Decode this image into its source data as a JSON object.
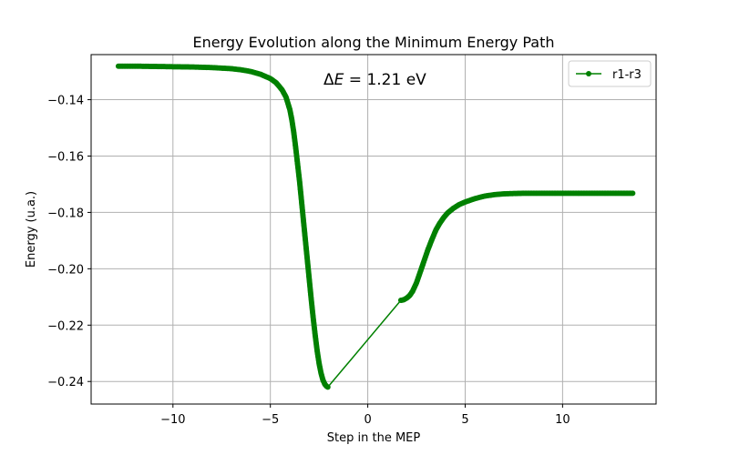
{
  "chart_data": {
    "type": "line",
    "title": "Energy Evolution along the Minimum Energy Path",
    "xlabel": "Step in the MEP",
    "ylabel": "Energy (u.a.)",
    "xlim": [
      -14.2,
      14.8
    ],
    "ylim": [
      -0.248,
      -0.124
    ],
    "xticks": [
      -10,
      -5,
      0,
      5,
      10
    ],
    "xtick_labels": [
      "−10",
      "−5",
      "0",
      "5",
      "10"
    ],
    "yticks": [
      -0.14,
      -0.16,
      -0.18,
      -0.2,
      -0.22,
      -0.24
    ],
    "ytick_labels": [
      "−0.14",
      "−0.16",
      "−0.18",
      "−0.20",
      "−0.22",
      "−0.24"
    ],
    "grid": true,
    "legend": {
      "placement": "top-right"
    },
    "annotation": {
      "prefix": "Δ",
      "symbol": "E",
      "suffix": " = 1.21 eV"
    },
    "series": [
      {
        "name": "r1-r3",
        "color": "#008000",
        "marker": "circle",
        "segments": [
          {
            "x": [
              -12.8,
              -12.0,
              -11.0,
              -10.0,
              -9.0,
              -8.0,
              -7.0,
              -6.5,
              -6.0,
              -5.5,
              -5.0,
              -4.7,
              -4.4,
              -4.2,
              -4.0,
              -3.9,
              -3.8,
              -3.7,
              -3.6,
              -3.5,
              -3.4,
              -3.3,
              -3.2,
              -3.1,
              -3.0,
              -2.9,
              -2.8,
              -2.7,
              -2.6,
              -2.5,
              -2.4,
              -2.3,
              -2.2,
              -2.1,
              -2.05
            ],
            "y": [
              -0.1281,
              -0.1281,
              -0.1282,
              -0.1283,
              -0.1284,
              -0.1286,
              -0.129,
              -0.1294,
              -0.13,
              -0.131,
              -0.1325,
              -0.134,
              -0.1365,
              -0.139,
              -0.1435,
              -0.147,
              -0.1515,
              -0.157,
              -0.163,
              -0.169,
              -0.176,
              -0.183,
              -0.19,
              -0.197,
              -0.204,
              -0.211,
              -0.2175,
              -0.2235,
              -0.229,
              -0.2335,
              -0.237,
              -0.2395,
              -0.241,
              -0.2418,
              -0.242
            ]
          },
          {
            "x": [
              -2.05,
              1.7
            ],
            "y": [
              -0.242,
              -0.2112
            ]
          },
          {
            "x": [
              1.7,
              1.85,
              2.0,
              2.15,
              2.3,
              2.5,
              2.7,
              2.9,
              3.1,
              3.3,
              3.5,
              3.7,
              3.9,
              4.1,
              4.4,
              4.7,
              5.0,
              5.5,
              6.0,
              6.5,
              7.0,
              7.5,
              8.0,
              9.0,
              10.0,
              11.0,
              12.0,
              13.0,
              13.6
            ],
            "y": [
              -0.2112,
              -0.211,
              -0.2104,
              -0.2095,
              -0.208,
              -0.205,
              -0.201,
              -0.197,
              -0.193,
              -0.1895,
              -0.1862,
              -0.1838,
              -0.1818,
              -0.1802,
              -0.1785,
              -0.1772,
              -0.1763,
              -0.1751,
              -0.1742,
              -0.1737,
              -0.1734,
              -0.1733,
              -0.1732,
              -0.1732,
              -0.1732,
              -0.1732,
              -0.1732,
              -0.1732,
              -0.1732
            ]
          }
        ]
      }
    ]
  }
}
